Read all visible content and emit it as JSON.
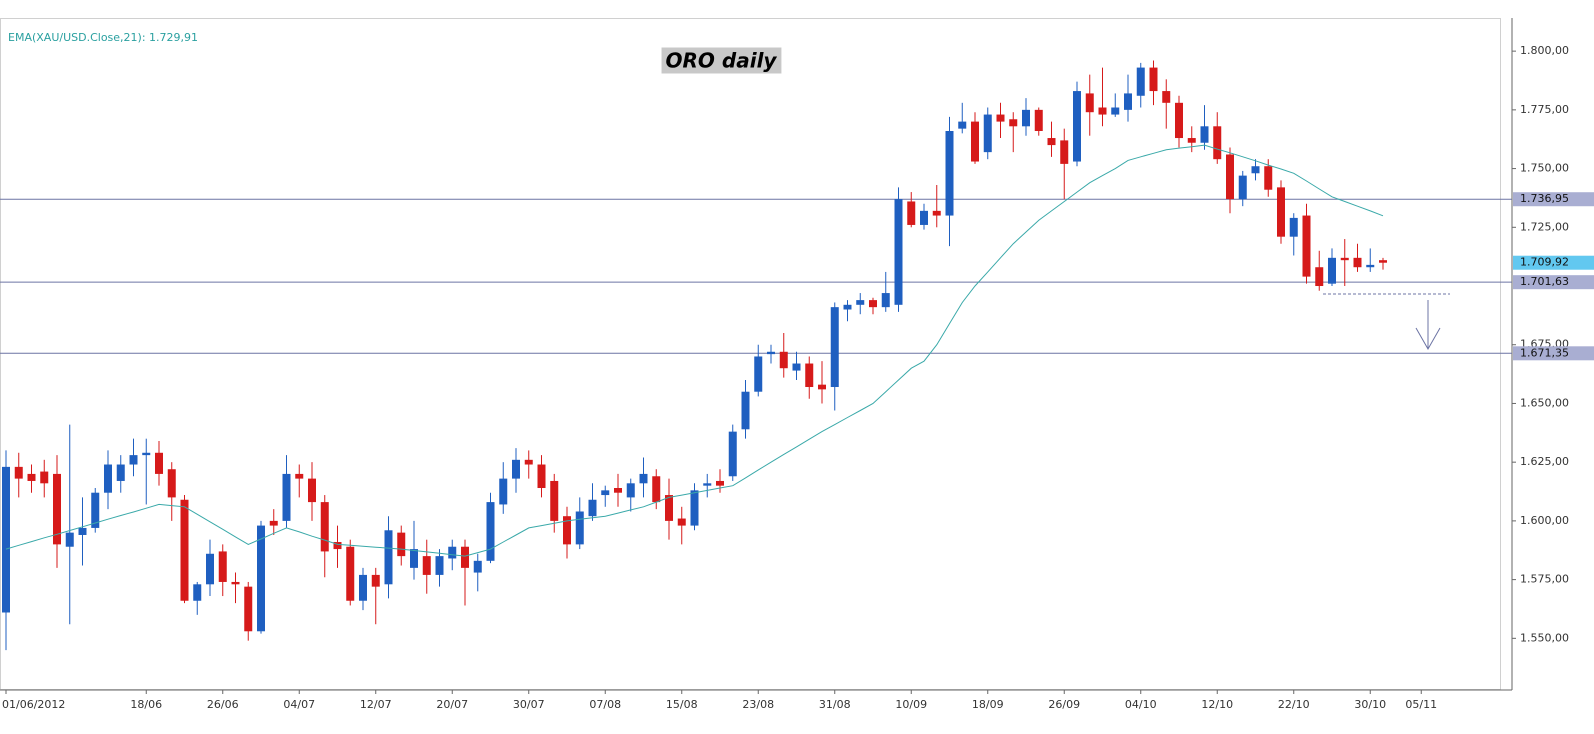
{
  "chart_data": {
    "type": "candlestick",
    "title": "ORO daily",
    "categories": [
      "01/06/2012",
      null,
      null,
      null,
      null,
      null,
      null,
      null,
      null,
      null,
      null,
      "18/06",
      null,
      null,
      null,
      null,
      null,
      "26/06",
      null,
      null,
      null,
      null,
      null,
      "04/07",
      null,
      null,
      null,
      null,
      null,
      "12/07",
      null,
      null,
      null,
      null,
      null,
      "20/07",
      null,
      null,
      null,
      null,
      null,
      "30/07",
      null,
      null,
      null,
      null,
      null,
      "07/08",
      null,
      null,
      null,
      null,
      null,
      "15/08",
      null,
      null,
      null,
      null,
      null,
      "23/08",
      null,
      null,
      null,
      null,
      null,
      "31/08",
      null,
      null,
      null,
      null,
      null,
      "10/09",
      null,
      null,
      null,
      null,
      null,
      "18/09",
      null,
      null,
      null,
      null,
      null,
      "26/09",
      null,
      null,
      null,
      null,
      null,
      "04/10",
      null,
      null,
      null,
      null,
      null,
      "12/10",
      null,
      null,
      null,
      null,
      null,
      "22/10",
      null,
      null,
      null,
      null,
      null,
      "30/10",
      null,
      null,
      null,
      "05/11"
    ],
    "open": [
      1561,
      1623,
      1620,
      1621,
      1620,
      1589,
      1594,
      1597,
      1612,
      1617,
      1624,
      1628,
      1629,
      1622,
      1609,
      1566,
      1573,
      1587,
      1574,
      1572,
      1553,
      1600,
      1600,
      1620,
      1618,
      1608,
      1591,
      1589,
      1566,
      1577,
      1573,
      1595,
      1580,
      1585,
      1577,
      1584,
      1589,
      1578,
      1583,
      1607,
      1618,
      1626,
      1624,
      1617,
      1602,
      1590,
      1602,
      1611,
      1614,
      1610,
      1616,
      1619,
      1611,
      1601,
      1598,
      1615,
      1617,
      1619,
      1639,
      1655,
      1671,
      1672,
      1664,
      1667,
      1658,
      1657,
      1690,
      1692,
      1694,
      1691,
      1692,
      1736,
      1726,
      1732,
      1730,
      1767,
      1770,
      1757,
      1773,
      1771,
      1768,
      1775,
      1763,
      1762,
      1753,
      1782,
      1776,
      1773,
      1775,
      1781,
      1793,
      1783,
      1778,
      1763,
      1761,
      1768,
      1756,
      1737,
      1748,
      1751,
      1742,
      1721,
      1730,
      1708,
      1701,
      1712,
      1712,
      1708,
      1711,
      null,
      null,
      null
    ],
    "high": [
      1630,
      1629,
      1624,
      1626,
      1628,
      1641,
      1610,
      1614,
      1630,
      1628,
      1635,
      1635,
      1634,
      1625,
      1611,
      1574,
      1592,
      1590,
      1578,
      1574,
      1600,
      1605,
      1628,
      1624,
      1625,
      1611,
      1598,
      1592,
      1580,
      1580,
      1602,
      1598,
      1600,
      1592,
      1588,
      1592,
      1592,
      1586,
      1612,
      1625,
      1631,
      1630,
      1628,
      1620,
      1606,
      1610,
      1616,
      1615,
      1620,
      1618,
      1627,
      1622,
      1618,
      1606,
      1616,
      1620,
      1622,
      1641,
      1660,
      1675,
      1675,
      1680,
      1672,
      1670,
      1668,
      1693,
      1694,
      1697,
      1695,
      1706,
      1742,
      1740,
      1735,
      1743,
      1772,
      1778,
      1774,
      1776,
      1778,
      1774,
      1780,
      1776,
      1770,
      1767,
      1787,
      1790,
      1793,
      1782,
      1790,
      1795,
      1796,
      1788,
      1781,
      1768,
      1777,
      1774,
      1759,
      1749,
      1754,
      1754,
      1745,
      1731,
      1735,
      1715,
      1716,
      1720,
      1718,
      1716,
      1712,
      null,
      null,
      null
    ],
    "low": [
      1545,
      1610,
      1612,
      1610,
      1580,
      1556,
      1581,
      1595,
      1605,
      1612,
      1619,
      1607,
      1615,
      1600,
      1565,
      1560,
      1568,
      1568,
      1565,
      1549,
      1552,
      1594,
      1597,
      1610,
      1600,
      1576,
      1580,
      1564,
      1562,
      1556,
      1567,
      1581,
      1575,
      1569,
      1572,
      1579,
      1564,
      1570,
      1582,
      1603,
      1612,
      1618,
      1610,
      1595,
      1584,
      1588,
      1600,
      1606,
      1606,
      1604,
      1610,
      1605,
      1592,
      1590,
      1596,
      1610,
      1612,
      1617,
      1635,
      1653,
      1667,
      1661,
      1660,
      1652,
      1650,
      1647,
      1685,
      1688,
      1688,
      1689,
      1689,
      1725,
      1724,
      1725,
      1717,
      1765,
      1752,
      1754,
      1763,
      1757,
      1764,
      1764,
      1755,
      1737,
      1751,
      1764,
      1768,
      1772,
      1770,
      1776,
      1777,
      1767,
      1759,
      1757,
      1758,
      1752,
      1731,
      1734,
      1745,
      1738,
      1718,
      1713,
      1701,
      1698,
      1700,
      1700,
      1706,
      1706,
      1707,
      null,
      null,
      null
    ],
    "close": [
      1623,
      1618,
      1617,
      1616,
      1590,
      1595,
      1597,
      1612,
      1624,
      1624,
      1628,
      1629,
      1620,
      1610,
      1566,
      1573,
      1586,
      1574,
      1573,
      1553,
      1598,
      1598,
      1620,
      1618,
      1608,
      1587,
      1588,
      1566,
      1577,
      1572,
      1596,
      1585,
      1588,
      1577,
      1585,
      1589,
      1580,
      1583,
      1608,
      1618,
      1626,
      1624,
      1614,
      1600,
      1590,
      1604,
      1609,
      1613,
      1612,
      1616,
      1620,
      1608,
      1600,
      1598,
      1613,
      1616,
      1615,
      1638,
      1655,
      1670,
      1672,
      1665,
      1667,
      1657,
      1656,
      1691,
      1692,
      1694,
      1691,
      1697,
      1737,
      1726,
      1732,
      1730,
      1766,
      1770,
      1753,
      1773,
      1770,
      1768,
      1775,
      1766,
      1760,
      1752,
      1783,
      1774,
      1773,
      1776,
      1782,
      1793,
      1783,
      1778,
      1763,
      1761,
      1768,
      1754,
      1737,
      1747,
      1751,
      1741,
      1721,
      1729,
      1704,
      1700,
      1712,
      1711,
      1708,
      1709,
      1709.92,
      null,
      null,
      null
    ],
    "up_color": "#1f5fc0",
    "down_color": "#d61a1a",
    "ema": {
      "name": "EMA(XAU/USD.Close,21): 1.729,91",
      "color": "#3aa9a9",
      "values": [
        1588,
        1589.6,
        1591.2,
        1592.8,
        1594.3,
        1595.9,
        1597.5,
        1599.1,
        1600.7,
        1602.3,
        1603.8,
        1605.4,
        1607,
        1606.5,
        1606,
        1602.8,
        1599.6,
        1596.4,
        1593.2,
        1590,
        1592.3,
        1594.7,
        1597,
        1595.3,
        1593.5,
        1591.8,
        1590,
        1589.6,
        1589.2,
        1588.8,
        1588.4,
        1588,
        1587.4,
        1586.8,
        1586.2,
        1585.6,
        1585,
        1586.5,
        1588,
        1591,
        1594,
        1597,
        1598,
        1599,
        1600,
        1600.7,
        1601.3,
        1602,
        1603.3,
        1604.7,
        1606,
        1608,
        1610,
        1611,
        1612,
        1613,
        1614,
        1615,
        1618.3,
        1621.7,
        1625,
        1628.3,
        1631.5,
        1634.8,
        1638,
        1641,
        1644,
        1647,
        1650,
        1655,
        1660,
        1665,
        1668,
        1675,
        1684,
        1693,
        1700,
        1706,
        1712,
        1718,
        1723,
        1728,
        1732,
        1736,
        1740,
        1744,
        1747,
        1750,
        1753.5,
        1755,
        1756.5,
        1758,
        1758.7,
        1759.3,
        1760,
        1758.3,
        1756.7,
        1755,
        1753.3,
        1751.5,
        1749.8,
        1748,
        1744.7,
        1741.3,
        1738,
        1736,
        1734,
        1732,
        1729.91,
        null,
        null,
        null
      ]
    },
    "ylim": [
      1528,
      1809
    ],
    "yticks": [
      {
        "value": 1550,
        "label": "1.550,00"
      },
      {
        "value": 1575,
        "label": "1.575,00"
      },
      {
        "value": 1600,
        "label": "1.600,00"
      },
      {
        "value": 1625,
        "label": "1.625,00"
      },
      {
        "value": 1650,
        "label": "1.650,00"
      },
      {
        "value": 1675,
        "label": "1.675,00"
      },
      {
        "value": 1725,
        "label": "1.725,00"
      },
      {
        "value": 1750,
        "label": "1.750,00"
      },
      {
        "value": 1775,
        "label": "1.775,00"
      },
      {
        "value": 1800,
        "label": "1.800,00"
      }
    ],
    "hlines": [
      {
        "value": 1736.95,
        "label": "1.736,95"
      },
      {
        "value": 1701.63,
        "label": "1.701,63"
      },
      {
        "value": 1671.35,
        "label": "1.671,35"
      }
    ],
    "hline_color": "#6c74a4",
    "last_price": {
      "value": 1709.92,
      "label": "1.709,92"
    },
    "last_price_color": "#62c8f0"
  }
}
